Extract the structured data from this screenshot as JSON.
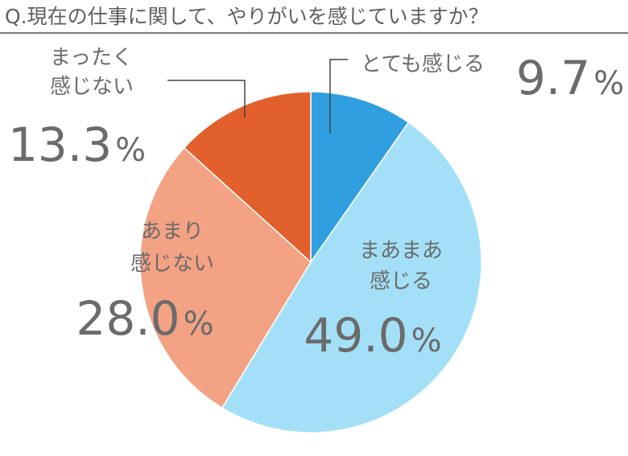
{
  "title": "Q.現在の仕事に関して、やりがいを感じていますか？",
  "chart_data": {
    "type": "pie",
    "title": "Q.現在の仕事に関して、やりがいを感じていますか？",
    "start": "top",
    "direction": "clockwise",
    "slices": [
      {
        "label_lines": [
          "とても感じる"
        ],
        "value": 9.7,
        "value_text": "9.7",
        "unit": "%",
        "color": "#2f9fe0"
      },
      {
        "label_lines": [
          "まあまあ",
          "感じる"
        ],
        "value": 49.0,
        "value_text": "49.0",
        "unit": "%",
        "color": "#a3e0f7"
      },
      {
        "label_lines": [
          "あまり",
          "感じない"
        ],
        "value": 28.0,
        "value_text": "28.0",
        "unit": "%",
        "color": "#f3a283"
      },
      {
        "label_lines": [
          "まったく",
          "感じない"
        ],
        "value": 13.3,
        "value_text": "13.3",
        "unit": "%",
        "color": "#e2602b"
      }
    ]
  }
}
